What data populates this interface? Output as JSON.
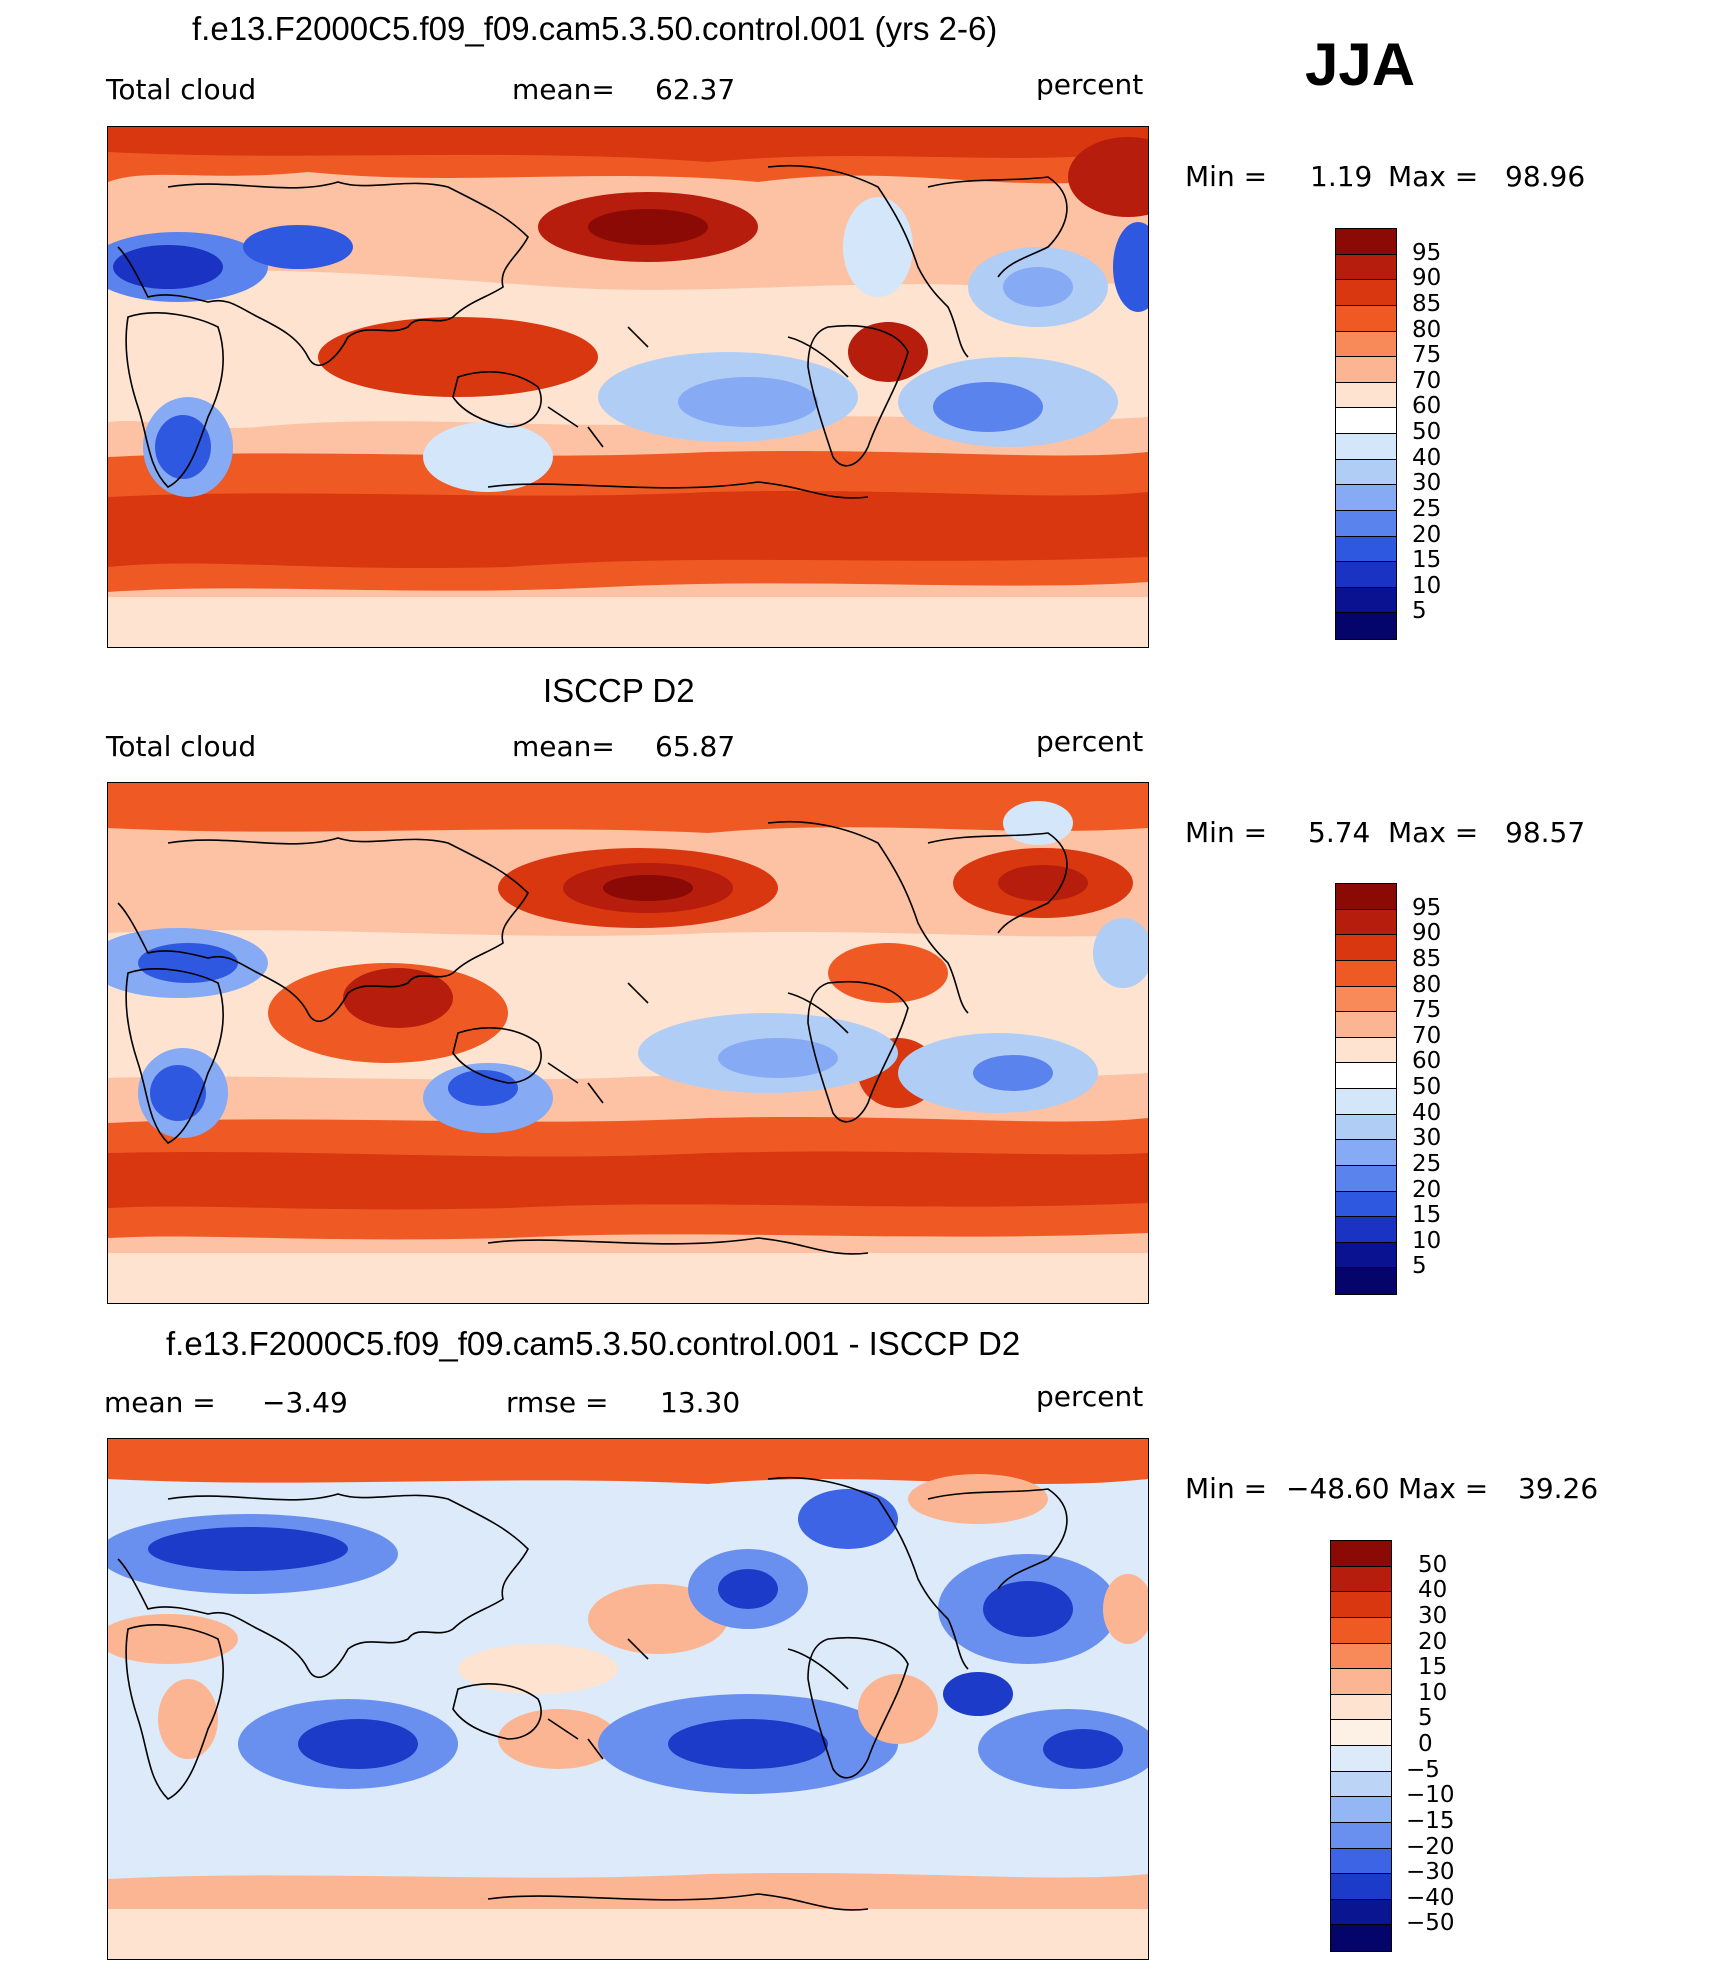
{
  "season": "JJA",
  "panels": [
    {
      "title": "f.e13.F2000C5.f09_f09.cam5.3.50.control.001 (yrs 2-6)",
      "left_label": "Total cloud",
      "stat_label": "mean=",
      "stat_value": "62.37",
      "units": "percent",
      "min_label": "Min =",
      "min_value": "1.19",
      "max_label": "Max =",
      "max_value": "98.96",
      "colorbar_ticks": [
        "95",
        "90",
        "85",
        "80",
        "75",
        "70",
        "60",
        "50",
        "40",
        "30",
        "25",
        "20",
        "15",
        "10",
        "5"
      ]
    },
    {
      "title": "ISCCP D2",
      "left_label": "Total cloud",
      "stat_label": "mean=",
      "stat_value": "65.87",
      "units": "percent",
      "min_label": "Min =",
      "min_value": "5.74",
      "max_label": "Max =",
      "max_value": "98.57",
      "colorbar_ticks": [
        "95",
        "90",
        "85",
        "80",
        "75",
        "70",
        "60",
        "50",
        "40",
        "30",
        "25",
        "20",
        "15",
        "10",
        "5"
      ]
    },
    {
      "title": "f.e13.F2000C5.f09_f09.cam5.3.50.control.001 - ISCCP D2",
      "left_label": "mean =",
      "left_value": "−3.49",
      "stat_label": "rmse =",
      "stat_value": "13.30",
      "units": "percent",
      "min_label": "Min =",
      "min_value": "−48.60",
      "max_label": "Max =",
      "max_value": "39.26",
      "colorbar_ticks": [
        "50",
        "40",
        "30",
        "20",
        "15",
        "10",
        "5",
        "0",
        "−5",
        "−10",
        "−15",
        "−20",
        "−30",
        "−40",
        "−50"
      ]
    }
  ],
  "colors": {
    "abs_scale": [
      "#8b0a06",
      "#b61d0c",
      "#d83710",
      "#ef5a24",
      "#f88a5a",
      "#fcb592",
      "#fde3d0",
      "#ffffff",
      "#d3e6fa",
      "#b0cdf6",
      "#86aaf3",
      "#5b83ee",
      "#2f58e0",
      "#1a33c3",
      "#0a1291",
      "#04046a"
    ],
    "diff_scale": [
      "#8b0a06",
      "#b61d0c",
      "#d83710",
      "#ef5a24",
      "#f88a5a",
      "#fcb592",
      "#fde3d0",
      "#fdf0e4",
      "#dceaf9",
      "#bcd5f7",
      "#94b6f4",
      "#6a90ef",
      "#3d64e4",
      "#1c3bc8",
      "#0a1591",
      "#04046a"
    ]
  }
}
